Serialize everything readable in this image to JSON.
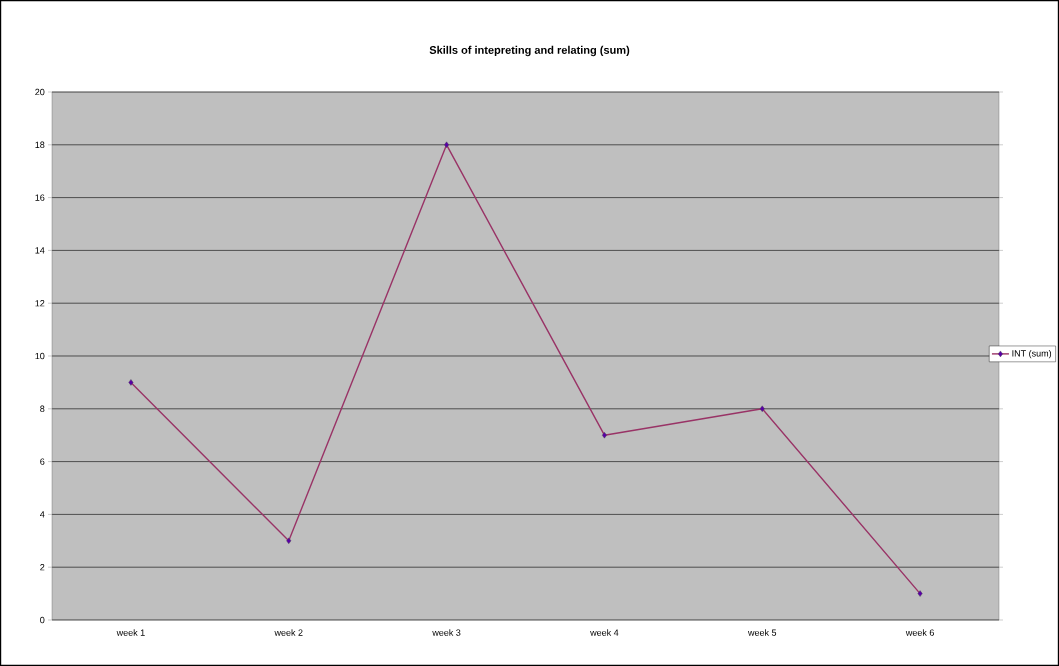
{
  "chart_data": {
    "type": "line",
    "title": "Skills of intepreting and relating (sum)",
    "categories": [
      "week 1",
      "week 2",
      "week 3",
      "week 4",
      "week 5",
      "week 6"
    ],
    "series": [
      {
        "name": "INT (sum)",
        "color": "#993366",
        "values": [
          9,
          3,
          18,
          7,
          8,
          1
        ]
      }
    ],
    "ylim": [
      0,
      20
    ],
    "yticks": [
      0,
      2,
      4,
      6,
      8,
      10,
      12,
      14,
      16,
      18,
      20
    ],
    "grid": "y",
    "legend": "right",
    "marker": "diamond",
    "line_style": "solid"
  }
}
